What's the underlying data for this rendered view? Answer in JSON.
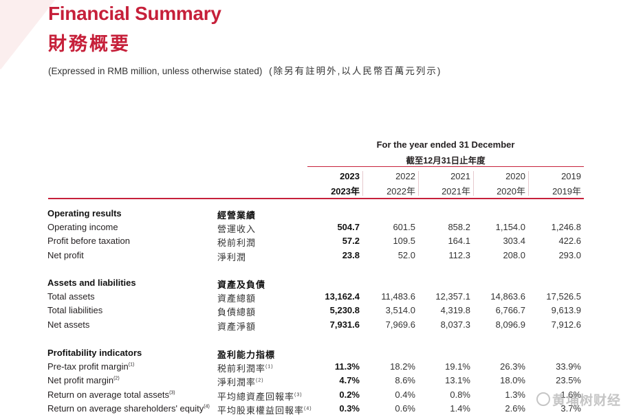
{
  "title": {
    "en": "Financial Summary",
    "zh": "財務概要"
  },
  "subtitle": {
    "en": "(Expressed in RMB million, unless otherwise stated)",
    "zh": "(除另有註明外,以人民幣百萬元列示)"
  },
  "period_header": {
    "en": "For the year ended 31 December",
    "zh": "截至12月31日止年度"
  },
  "years": [
    {
      "en": "2023",
      "zh": "2023年"
    },
    {
      "en": "2022",
      "zh": "2022年"
    },
    {
      "en": "2021",
      "zh": "2021年"
    },
    {
      "en": "2020",
      "zh": "2020年"
    },
    {
      "en": "2019",
      "zh": "2019年"
    }
  ],
  "sections": [
    {
      "heading": {
        "en": "Operating results",
        "zh": "經營業績"
      },
      "rows": [
        {
          "en": "Operating income",
          "zh": "營運收入",
          "values": [
            "504.7",
            "601.5",
            "858.2",
            "1,154.0",
            "1,246.8"
          ]
        },
        {
          "en": "Profit before taxation",
          "zh": "税前利潤",
          "values": [
            "57.2",
            "109.5",
            "164.1",
            "303.4",
            "422.6"
          ]
        },
        {
          "en": "Net profit",
          "zh": "淨利潤",
          "values": [
            "23.8",
            "52.0",
            "112.3",
            "208.0",
            "293.0"
          ]
        }
      ]
    },
    {
      "heading": {
        "en": "Assets and liabilities",
        "zh": "資產及負債"
      },
      "rows": [
        {
          "en": "Total assets",
          "zh": "資產總額",
          "values": [
            "13,162.4",
            "11,483.6",
            "12,357.1",
            "14,863.6",
            "17,526.5"
          ]
        },
        {
          "en": "Total liabilities",
          "zh": "負債總額",
          "values": [
            "5,230.8",
            "3,514.0",
            "4,319.8",
            "6,766.7",
            "9,613.9"
          ]
        },
        {
          "en": "Net assets",
          "zh": "資產淨額",
          "values": [
            "7,931.6",
            "7,969.6",
            "8,037.3",
            "8,096.9",
            "7,912.6"
          ]
        }
      ]
    },
    {
      "heading": {
        "en": "Profitability indicators",
        "zh": "盈利能力指標"
      },
      "rows": [
        {
          "en": "Pre-tax profit margin",
          "en_note": "(1)",
          "zh": "税前利潤率",
          "zh_note": "(1)",
          "values": [
            "11.3%",
            "18.2%",
            "19.1%",
            "26.3%",
            "33.9%"
          ]
        },
        {
          "en": "Net profit margin",
          "en_note": "(2)",
          "zh": "淨利潤率",
          "zh_note": "(2)",
          "values": [
            "4.7%",
            "8.6%",
            "13.1%",
            "18.0%",
            "23.5%"
          ]
        },
        {
          "en": "Return on average total assets",
          "en_note": "(3)",
          "zh": "平均總資產回報率",
          "zh_note": "(3)",
          "values": [
            "0.2%",
            "0.4%",
            "0.8%",
            "1.3%",
            "1.6%"
          ]
        },
        {
          "en": "Return on average shareholders' equity",
          "en_note": "(4)",
          "zh": "平均股東權益回報率",
          "zh_note": "(4)",
          "values": [
            "0.3%",
            "0.6%",
            "1.4%",
            "2.6%",
            "3.7%"
          ]
        }
      ]
    }
  ],
  "watermark": "黄埔树财经",
  "colors": {
    "accent": "#c6203a",
    "text": "#231f20"
  }
}
